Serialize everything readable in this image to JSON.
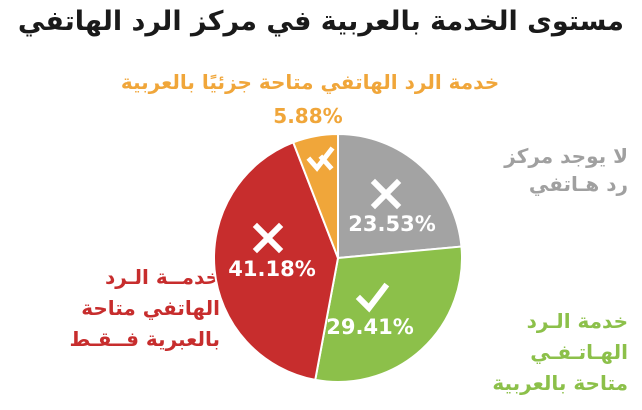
{
  "title": "مستوى الخدمة بالعربية في مركز الرد الهاتفي",
  "chart_data": {
    "type": "pie",
    "title": "مستوى الخدمة بالعربية في مركز الرد الهاتفي",
    "start_angle_deg": 0,
    "direction": "clockwise",
    "slices": [
      {
        "label_lines": [
          "لا يوجد مركز",
          "رد هـاتفي"
        ],
        "value": 23.53,
        "value_label": "23.53%",
        "color": "#a3a3a3",
        "icon": "cross-icon"
      },
      {
        "label_lines": [
          "خدمة الـرد",
          "الهـاتـفـي",
          "متاحة بالعربية"
        ],
        "value": 29.41,
        "value_label": "29.41%",
        "color": "#8cc04a",
        "icon": "check-icon"
      },
      {
        "label_lines": [
          "خدمــة الـرد",
          "الهاتفي متاحة",
          "بالعبرية فــقـط"
        ],
        "value": 41.18,
        "value_label": "41.18%",
        "color": "#c72d2d",
        "icon": "cross-icon"
      },
      {
        "label_lines": [
          "خدمة الرد الهاتفي متاحة جزئيًا بالعربية"
        ],
        "value": 5.88,
        "value_label": "5.88%",
        "color": "#f0a63a",
        "icon": "partial-check-icon"
      }
    ]
  }
}
